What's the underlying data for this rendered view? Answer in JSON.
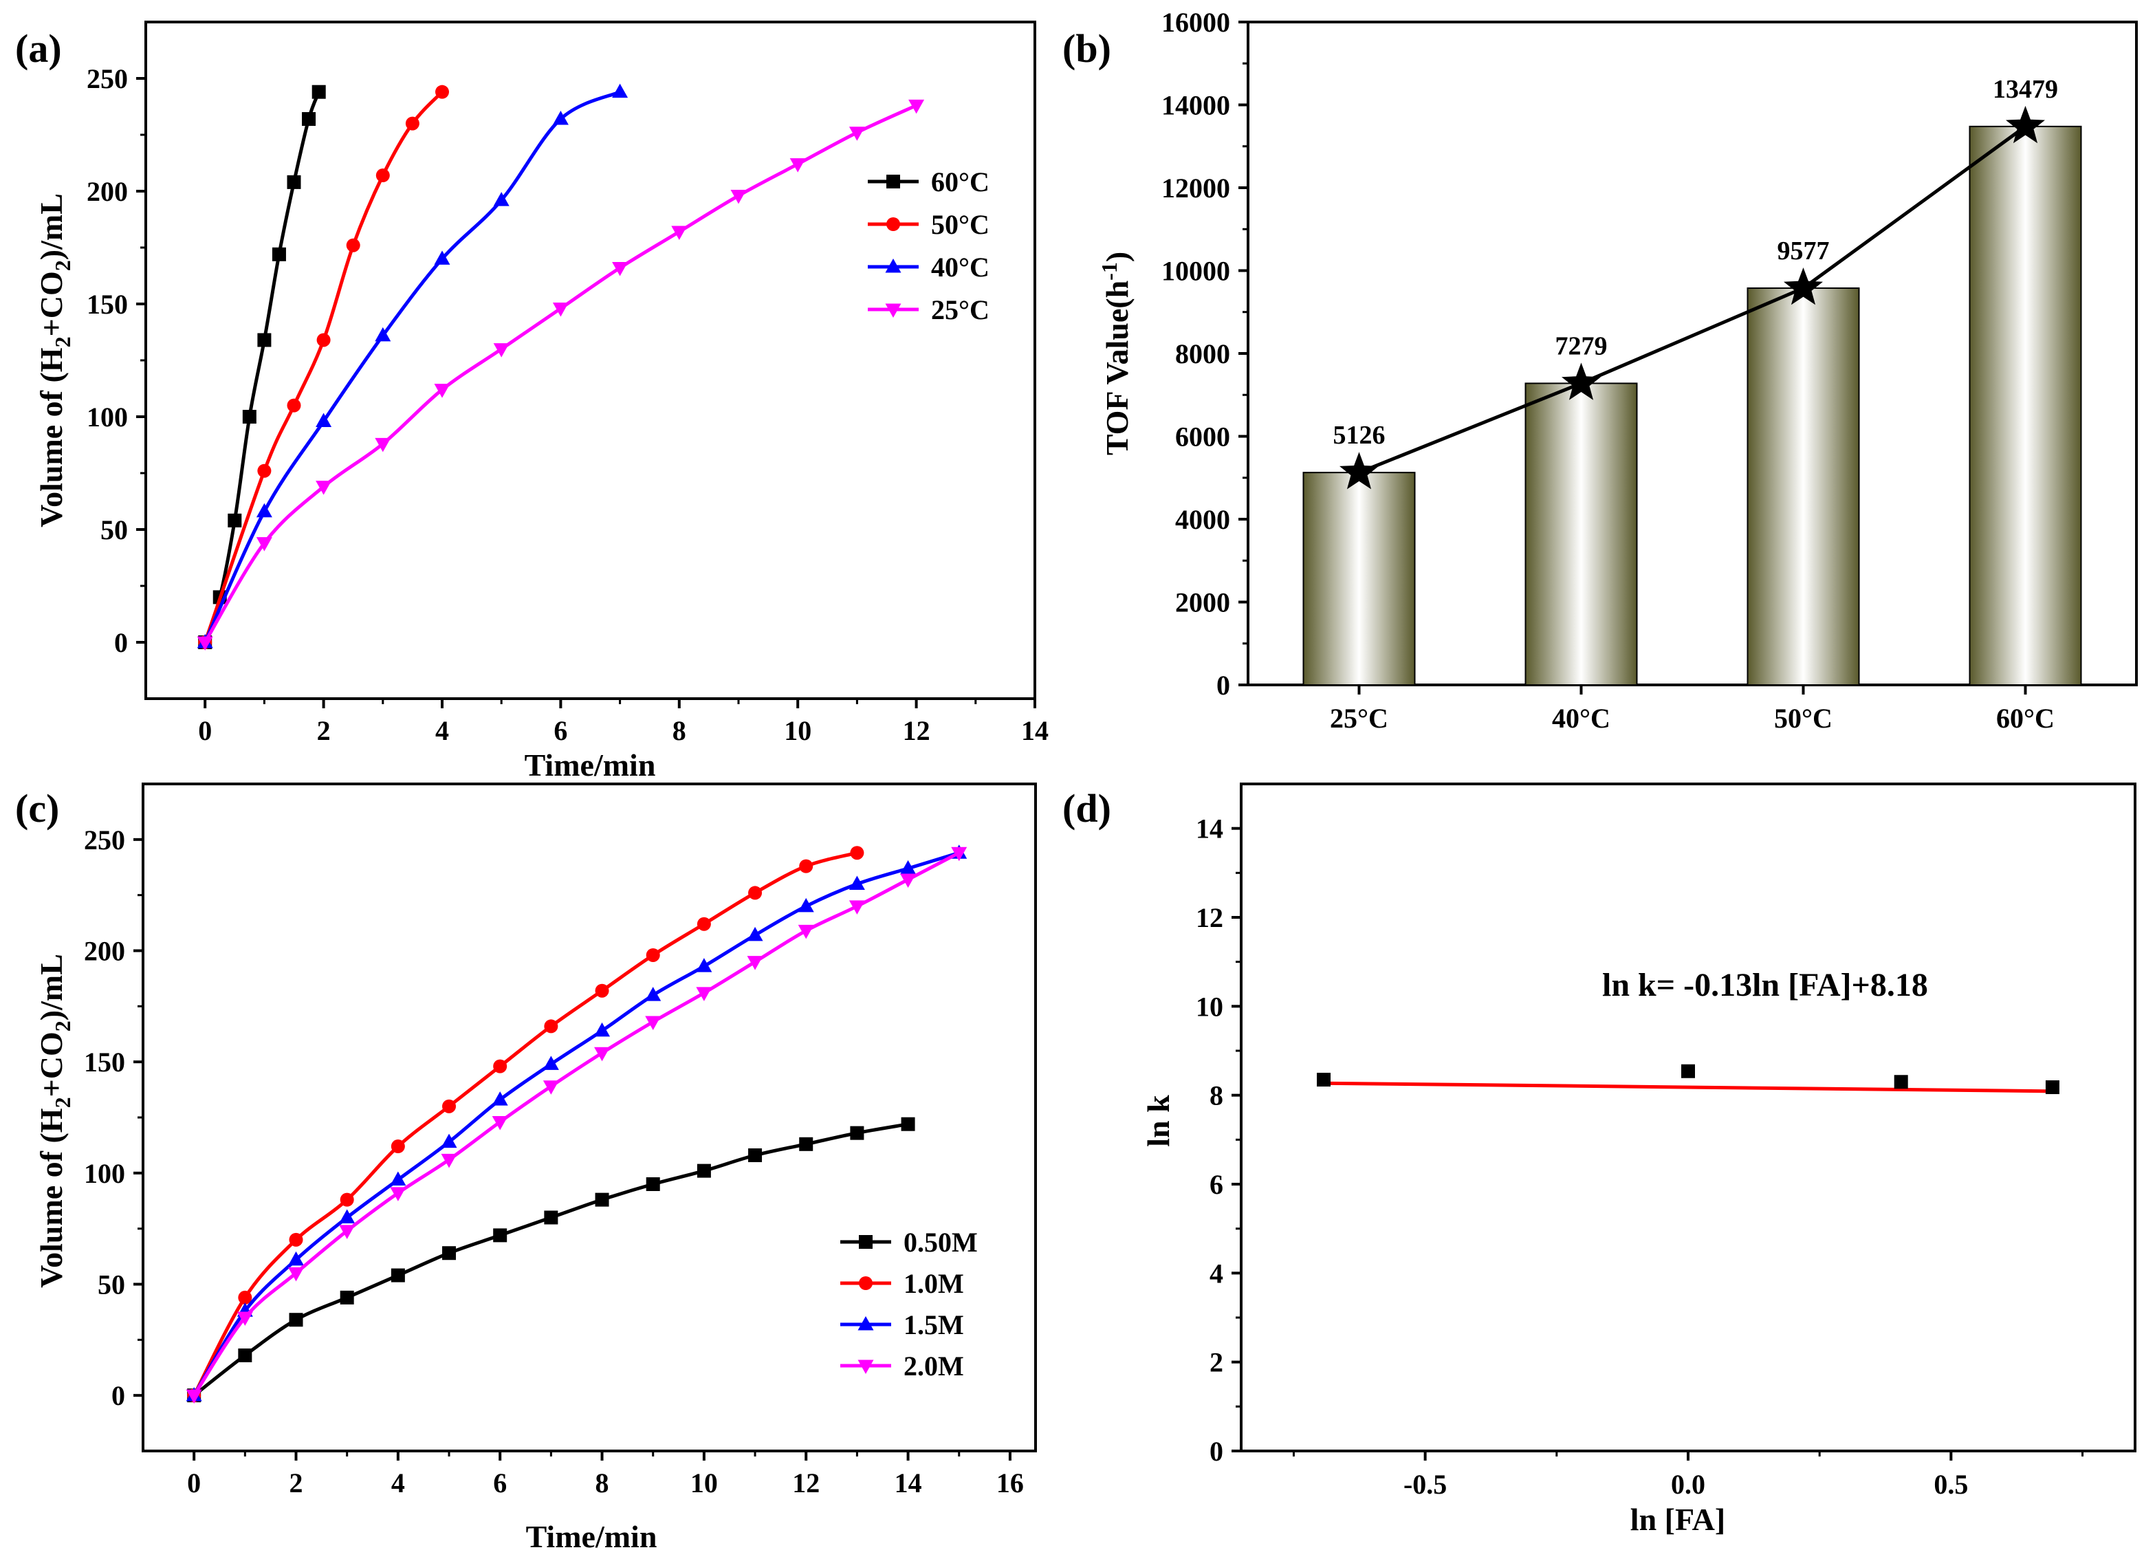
{
  "chart_data": [
    {
      "panel": "(a)",
      "type": "line",
      "xlabel": "Time/min",
      "ylabel": "Volume of (H2+CO2)/mL",
      "xlim": [
        -1,
        14
      ],
      "ylim": [
        -25,
        275
      ],
      "xticks": [
        "0",
        "2",
        "4",
        "6",
        "8",
        "10",
        "12",
        "14"
      ],
      "yticks": [
        "0",
        "50",
        "100",
        "150",
        "200",
        "250"
      ],
      "legend": "top-right",
      "series": [
        {
          "name": "60°C",
          "color": "#000000",
          "marker": "square",
          "x": [
            0,
            0.25,
            0.5,
            0.75,
            1,
            1.25,
            1.5,
            1.75,
            1.92
          ],
          "y": [
            0,
            20,
            54,
            100,
            134,
            172,
            204,
            232,
            244
          ]
        },
        {
          "name": "50°C",
          "color": "#ff0000",
          "marker": "circle",
          "x": [
            0,
            1,
            1.5,
            2,
            2.5,
            3,
            3.5,
            4
          ],
          "y": [
            0,
            76,
            105,
            134,
            176,
            207,
            230,
            244
          ]
        },
        {
          "name": "40°C",
          "color": "#0000ff",
          "marker": "triangle-up",
          "x": [
            0,
            1,
            2,
            3,
            4,
            5,
            6,
            7
          ],
          "y": [
            0,
            58,
            98,
            136,
            170,
            196,
            232,
            244
          ]
        },
        {
          "name": "25°C",
          "color": "#ff00ff",
          "marker": "triangle-down",
          "x": [
            0,
            1,
            2,
            3,
            4,
            5,
            6,
            7,
            8,
            9,
            10,
            11,
            12
          ],
          "y": [
            0,
            44,
            69,
            88,
            112,
            130,
            148,
            166,
            182,
            198,
            212,
            226,
            238
          ]
        }
      ]
    },
    {
      "panel": "(b)",
      "type": "bar",
      "xlabel": "",
      "ylabel": "TOF Value(h-1)",
      "categories": [
        "25°C",
        "40°C",
        "50°C",
        "60°C"
      ],
      "values": [
        5126,
        7279,
        9577,
        13479
      ],
      "value_labels": [
        "5126",
        "7279",
        "9577",
        "13479"
      ],
      "ylim": [
        0,
        16000
      ],
      "yticks": [
        "0",
        "2000",
        "4000",
        "6000",
        "8000",
        "10000",
        "12000",
        "14000",
        "16000"
      ],
      "overlay_line": {
        "marker": "star",
        "color": "#000000",
        "values": [
          5126,
          7279,
          9577,
          13479
        ]
      },
      "bar_color": "#6b6b3a"
    },
    {
      "panel": "(c)",
      "type": "line",
      "xlabel": "Time/min",
      "ylabel": "Volume of (H2+CO2)/mL",
      "xlim": [
        -1,
        16.5
      ],
      "ylim": [
        -25,
        275
      ],
      "xticks": [
        "0",
        "2",
        "4",
        "6",
        "8",
        "10",
        "12",
        "14",
        "16"
      ],
      "yticks": [
        "0",
        "50",
        "100",
        "150",
        "200",
        "250"
      ],
      "legend": "bottom-right",
      "series": [
        {
          "name": "0.50M",
          "color": "#000000",
          "marker": "square",
          "x": [
            0,
            1,
            2,
            3,
            4,
            5,
            6,
            7,
            8,
            9,
            10,
            11,
            12,
            13,
            14
          ],
          "y": [
            0,
            18,
            34,
            44,
            54,
            64,
            72,
            80,
            88,
            95,
            101,
            108,
            113,
            118,
            122
          ]
        },
        {
          "name": "1.0M",
          "color": "#ff0000",
          "marker": "circle",
          "x": [
            0,
            1,
            2,
            3,
            4,
            5,
            6,
            7,
            8,
            9,
            10,
            11,
            12,
            13
          ],
          "y": [
            0,
            44,
            70,
            88,
            112,
            130,
            148,
            166,
            182,
            198,
            212,
            226,
            238,
            244
          ]
        },
        {
          "name": "1.5M",
          "color": "#0000ff",
          "marker": "triangle-up",
          "x": [
            0,
            1,
            2,
            3,
            4,
            5,
            6,
            7,
            8,
            9,
            10,
            11,
            12,
            13,
            14,
            15
          ],
          "y": [
            0,
            38,
            61,
            80,
            97,
            114,
            133,
            149,
            164,
            180,
            193,
            207,
            220,
            230,
            237,
            244
          ]
        },
        {
          "name": "2.0M",
          "color": "#ff00ff",
          "marker": "triangle-down",
          "x": [
            0,
            1,
            2,
            3,
            4,
            5,
            6,
            7,
            8,
            9,
            10,
            11,
            12,
            13,
            14,
            15
          ],
          "y": [
            0,
            35,
            55,
            74,
            91,
            106,
            123,
            139,
            154,
            168,
            181,
            195,
            209,
            220,
            232,
            244
          ]
        }
      ]
    },
    {
      "panel": "(d)",
      "type": "scatter",
      "xlabel": "ln [FA]",
      "ylabel": "ln k",
      "xlim": [
        -0.85,
        0.85
      ],
      "ylim": [
        0,
        15
      ],
      "xticks": [
        -0.5,
        0.0,
        0.5
      ],
      "xtick_labels": [
        "-0.5",
        "0.0",
        "0.5"
      ],
      "yticks": [
        "0",
        "2",
        "4",
        "6",
        "8",
        "10",
        "12",
        "14"
      ],
      "points": {
        "x": [
          -0.693,
          0.0,
          0.405,
          0.693
        ],
        "y": [
          8.35,
          8.54,
          8.3,
          8.18
        ],
        "color": "#000000",
        "marker": "square"
      },
      "fit": {
        "slope": -0.13,
        "intercept": 8.18,
        "x_range": [
          -0.693,
          0.693
        ],
        "color": "#ff0000"
      },
      "annotation": "ln k= -0.13ln [FA]+8.18"
    }
  ]
}
